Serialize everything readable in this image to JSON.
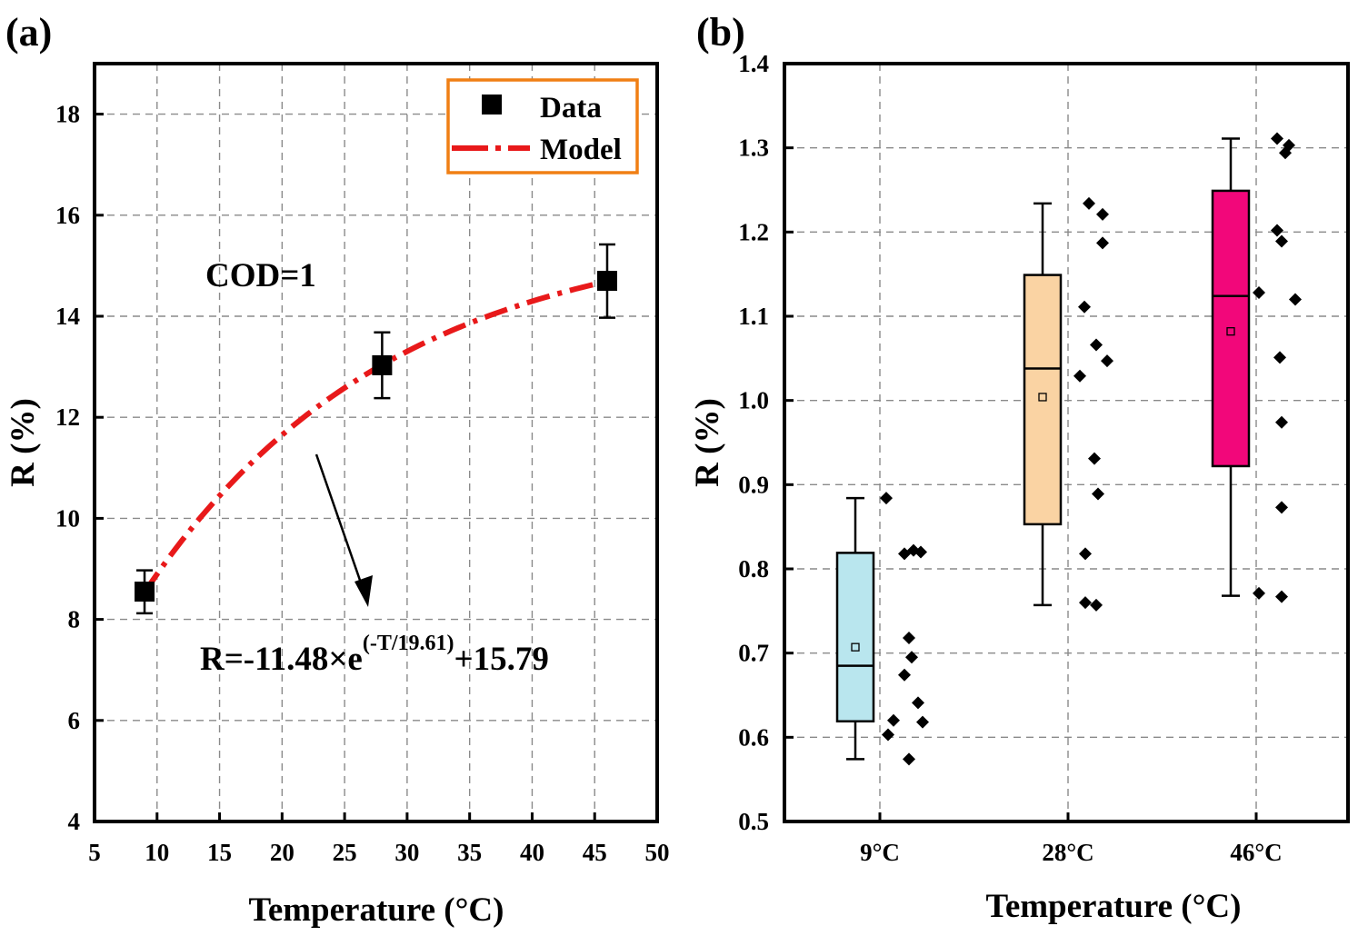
{
  "panel_labels": {
    "a": "(a)",
    "b": "(b)"
  },
  "colors": {
    "model_line": "#e8191a",
    "legend_border": "#f07f14",
    "box_9": "#b9e6ee",
    "box_28": "#fad3a3",
    "box_46": "#f2077a"
  },
  "chart_data": [
    {
      "type": "scatter",
      "title": "",
      "xlabel": "Temperature (°C)",
      "ylabel": "R (%)",
      "xlim": [
        5,
        50
      ],
      "ylim": [
        4,
        19
      ],
      "xticks": [
        "5",
        "10",
        "15",
        "20",
        "25",
        "30",
        "35",
        "40",
        "45",
        "50"
      ],
      "yticks": [
        "4",
        "6",
        "8",
        "10",
        "12",
        "14",
        "16",
        "18"
      ],
      "legend": {
        "placement": "top-right",
        "entries": [
          "Data",
          "Model"
        ]
      },
      "series": [
        {
          "name": "Data",
          "x": [
            9,
            28,
            46
          ],
          "y": [
            8.55,
            13.03,
            14.7
          ],
          "err_low": [
            8.12,
            12.38,
            13.97
          ],
          "err_high": [
            8.97,
            13.68,
            15.42
          ]
        },
        {
          "name": "Model",
          "function": "R=-11.48*exp(-T/19.61)+15.79",
          "x_range": [
            9,
            46
          ],
          "a": -11.48,
          "b": 19.61,
          "c": 15.79
        }
      ],
      "annotations": {
        "cod": "COD=1",
        "eq_prefix": "R=-11.48×e",
        "eq_exponent": "(-T/19.61)",
        "eq_suffix": "+15.79"
      }
    },
    {
      "type": "box",
      "title": "",
      "xlabel": "Temperature (°C)",
      "ylabel": "R (%)",
      "ylim": [
        0.5,
        1.4
      ],
      "yticks": [
        "0.5",
        "0.6",
        "0.7",
        "0.8",
        "0.9",
        "1.0",
        "1.1",
        "1.2",
        "1.3",
        "1.4"
      ],
      "categories": [
        "9°C",
        "28°C",
        "46°C"
      ],
      "boxes": [
        {
          "category": "9°C",
          "whisker_low": 0.574,
          "q1": 0.619,
          "median": 0.685,
          "q3": 0.819,
          "whisker_high": 0.884,
          "mean": 0.707,
          "points": [
            0.884,
            0.822,
            0.818,
            0.82,
            0.718,
            0.695,
            0.674,
            0.641,
            0.62,
            0.618,
            0.603,
            0.574
          ]
        },
        {
          "category": "28°C",
          "whisker_low": 0.757,
          "q1": 0.853,
          "median": 1.038,
          "q3": 1.149,
          "whisker_high": 1.234,
          "mean": 1.004,
          "points": [
            1.234,
            1.221,
            1.187,
            1.111,
            1.066,
            1.047,
            1.029,
            0.931,
            0.889,
            0.818,
            0.76,
            0.757
          ]
        },
        {
          "category": "46°C",
          "whisker_low": 0.768,
          "q1": 0.922,
          "median": 1.124,
          "q3": 1.249,
          "whisker_high": 1.311,
          "mean": 1.082,
          "points": [
            1.311,
            1.303,
            1.294,
            1.202,
            1.189,
            1.128,
            1.12,
            1.051,
            0.974,
            0.873,
            0.771,
            0.767
          ]
        }
      ]
    }
  ]
}
